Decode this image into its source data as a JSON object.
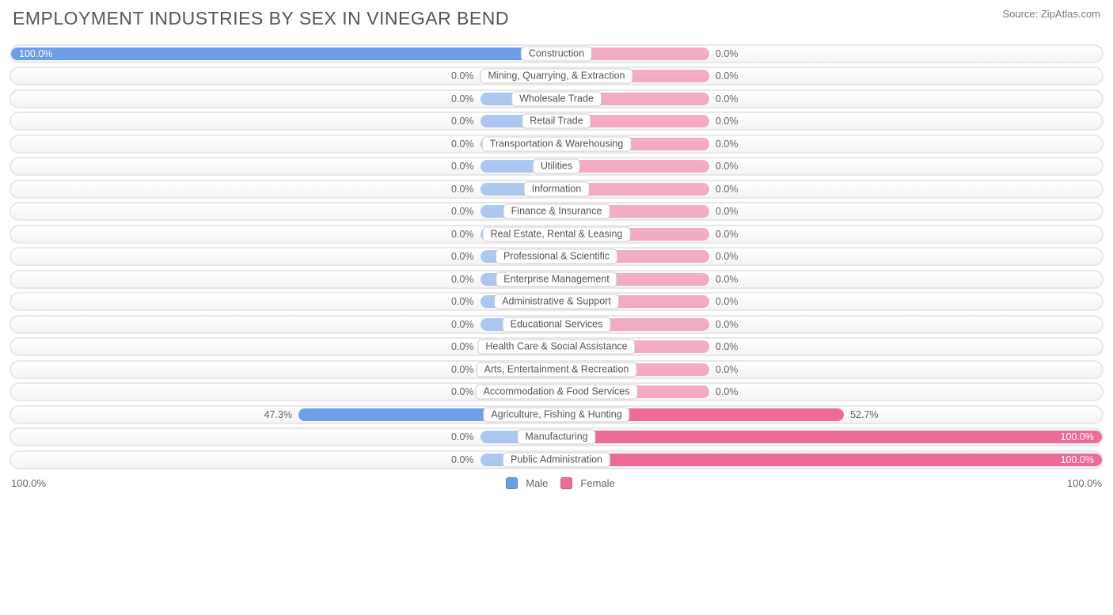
{
  "title": "EMPLOYMENT INDUSTRIES BY SEX IN VINEGAR BEND",
  "source": "Source: ZipAtlas.com",
  "colors": {
    "male": "#6e9ee8",
    "female": "#ed6b95",
    "male_blank_half_pct": 14,
    "female_blank_half_pct": 28,
    "track_border": "#e8e8e8",
    "text": "#555555"
  },
  "axis": {
    "left_end": "100.0%",
    "right_end": "100.0%",
    "max": 100.0
  },
  "legend": {
    "male": "Male",
    "female": "Female"
  },
  "rows": [
    {
      "label": "Construction",
      "male": 100.0,
      "female": 0.0
    },
    {
      "label": "Mining, Quarrying, & Extraction",
      "male": 0.0,
      "female": 0.0
    },
    {
      "label": "Wholesale Trade",
      "male": 0.0,
      "female": 0.0
    },
    {
      "label": "Retail Trade",
      "male": 0.0,
      "female": 0.0
    },
    {
      "label": "Transportation & Warehousing",
      "male": 0.0,
      "female": 0.0
    },
    {
      "label": "Utilities",
      "male": 0.0,
      "female": 0.0
    },
    {
      "label": "Information",
      "male": 0.0,
      "female": 0.0
    },
    {
      "label": "Finance & Insurance",
      "male": 0.0,
      "female": 0.0
    },
    {
      "label": "Real Estate, Rental & Leasing",
      "male": 0.0,
      "female": 0.0
    },
    {
      "label": "Professional & Scientific",
      "male": 0.0,
      "female": 0.0
    },
    {
      "label": "Enterprise Management",
      "male": 0.0,
      "female": 0.0
    },
    {
      "label": "Administrative & Support",
      "male": 0.0,
      "female": 0.0
    },
    {
      "label": "Educational Services",
      "male": 0.0,
      "female": 0.0
    },
    {
      "label": "Health Care & Social Assistance",
      "male": 0.0,
      "female": 0.0
    },
    {
      "label": "Arts, Entertainment & Recreation",
      "male": 0.0,
      "female": 0.0
    },
    {
      "label": "Accommodation & Food Services",
      "male": 0.0,
      "female": 0.0
    },
    {
      "label": "Agriculture, Fishing & Hunting",
      "male": 47.3,
      "female": 52.7
    },
    {
      "label": "Manufacturing",
      "male": 0.0,
      "female": 100.0
    },
    {
      "label": "Public Administration",
      "male": 0.0,
      "female": 100.0
    }
  ]
}
